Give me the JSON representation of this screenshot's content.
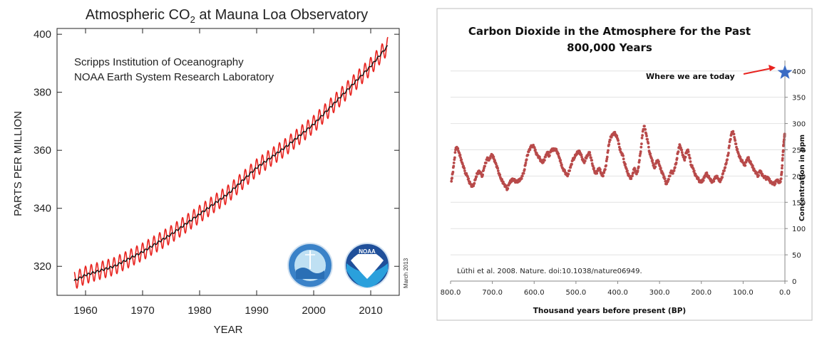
{
  "colors": {
    "seasonal": "#e8231f",
    "trend": "#111111",
    "scatter": "#b84a4a",
    "star": "#3a6bc4",
    "arrow": "#e8231f"
  },
  "chart_data": [
    {
      "type": "line",
      "title": "Atmospheric CO",
      "title_sub": "2",
      "title_rest": " at Mauna Loa Observatory",
      "xlabel": "YEAR",
      "ylabel": "PARTS PER MILLION",
      "xlim": [
        1955,
        2015
      ],
      "ylim": [
        310,
        402
      ],
      "x_ticks": [
        1960,
        1970,
        1980,
        1990,
        2000,
        2010
      ],
      "y_ticks": [
        320,
        340,
        360,
        380,
        400
      ],
      "grid": false,
      "annotations": [
        "Scripps Institution of Oceanography",
        "NOAA Earth System Research Laboratory"
      ],
      "date_note": "March 2013",
      "series": [
        {
          "role": "monthly mean (seasonal)",
          "x": [
            1958,
            1960,
            1965,
            1970,
            1975,
            1980,
            1985,
            1990,
            1995,
            2000,
            2005,
            2010,
            2013
          ],
          "y": [
            315,
            317,
            320,
            325,
            331,
            338,
            345,
            354,
            361,
            369,
            379,
            389,
            396
          ],
          "seasonal_amplitude": 3
        },
        {
          "role": "trend",
          "x": [
            1958,
            1960,
            1965,
            1970,
            1975,
            1980,
            1985,
            1990,
            1995,
            2000,
            2005,
            2010,
            2013
          ],
          "y": [
            315,
            317,
            320,
            325,
            331,
            338,
            345,
            354,
            361,
            369,
            379,
            389,
            396
          ]
        }
      ]
    },
    {
      "type": "scatter",
      "title_line1": "Carbon Dioxide  in the Atmosphere for the Past",
      "title_line2": "800,000 Years",
      "xlabel": "Thousand years before present (BP)",
      "ylabel": "Concentration in ppm",
      "xlim": [
        800,
        0
      ],
      "ylim": [
        0,
        420
      ],
      "x_ticks": [
        "800.0",
        "700.0",
        "600.0",
        "500.0",
        "400.0",
        "300.0",
        "200.0",
        "100.0",
        "0.0"
      ],
      "y_ticks": [
        0,
        50,
        100,
        150,
        200,
        250,
        300,
        350,
        400
      ],
      "grid": true,
      "annotation": "Where we are today",
      "citation": "Lüthi et al. 2008. Nature. doi:10.1038/nature06949.",
      "today": {
        "x": 0,
        "y": 397
      },
      "points": [
        [
          798,
          190
        ],
        [
          795,
          205
        ],
        [
          792,
          225
        ],
        [
          788,
          250
        ],
        [
          785,
          255
        ],
        [
          780,
          245
        ],
        [
          776,
          235
        ],
        [
          772,
          225
        ],
        [
          768,
          215
        ],
        [
          764,
          205
        ],
        [
          760,
          200
        ],
        [
          756,
          190
        ],
        [
          752,
          185
        ],
        [
          748,
          180
        ],
        [
          744,
          185
        ],
        [
          740,
          195
        ],
        [
          736,
          205
        ],
        [
          732,
          210
        ],
        [
          728,
          205
        ],
        [
          724,
          200
        ],
        [
          720,
          215
        ],
        [
          716,
          225
        ],
        [
          712,
          235
        ],
        [
          708,
          230
        ],
        [
          704,
          238
        ],
        [
          700,
          240
        ],
        [
          696,
          232
        ],
        [
          692,
          225
        ],
        [
          688,
          215
        ],
        [
          684,
          205
        ],
        [
          680,
          195
        ],
        [
          676,
          190
        ],
        [
          672,
          185
        ],
        [
          668,
          180
        ],
        [
          664,
          175
        ],
        [
          660,
          185
        ],
        [
          656,
          190
        ],
        [
          652,
          195
        ],
        [
          648,
          192
        ],
        [
          644,
          190
        ],
        [
          640,
          188
        ],
        [
          636,
          192
        ],
        [
          632,
          195
        ],
        [
          628,
          200
        ],
        [
          624,
          210
        ],
        [
          620,
          225
        ],
        [
          616,
          240
        ],
        [
          612,
          250
        ],
        [
          608,
          255
        ],
        [
          604,
          258
        ],
        [
          600,
          255
        ],
        [
          596,
          245
        ],
        [
          592,
          240
        ],
        [
          588,
          235
        ],
        [
          584,
          230
        ],
        [
          580,
          225
        ],
        [
          576,
          230
        ],
        [
          572,
          240
        ],
        [
          568,
          245
        ],
        [
          564,
          238
        ],
        [
          560,
          248
        ],
        [
          556,
          250
        ],
        [
          552,
          252
        ],
        [
          548,
          250
        ],
        [
          544,
          245
        ],
        [
          540,
          235
        ],
        [
          536,
          225
        ],
        [
          532,
          215
        ],
        [
          528,
          210
        ],
        [
          524,
          205
        ],
        [
          520,
          200
        ],
        [
          516,
          210
        ],
        [
          512,
          220
        ],
        [
          508,
          230
        ],
        [
          504,
          235
        ],
        [
          500,
          240
        ],
        [
          496,
          245
        ],
        [
          492,
          248
        ],
        [
          488,
          240
        ],
        [
          484,
          232
        ],
        [
          480,
          225
        ],
        [
          476,
          235
        ],
        [
          472,
          240
        ],
        [
          468,
          245
        ],
        [
          464,
          235
        ],
        [
          460,
          220
        ],
        [
          456,
          210
        ],
        [
          452,
          205
        ],
        [
          448,
          210
        ],
        [
          444,
          215
        ],
        [
          440,
          205
        ],
        [
          436,
          200
        ],
        [
          432,
          210
        ],
        [
          428,
          220
        ],
        [
          424,
          245
        ],
        [
          420,
          265
        ],
        [
          416,
          275
        ],
        [
          412,
          280
        ],
        [
          408,
          282
        ],
        [
          404,
          278
        ],
        [
          400,
          270
        ],
        [
          396,
          255
        ],
        [
          392,
          245
        ],
        [
          388,
          240
        ],
        [
          384,
          225
        ],
        [
          380,
          215
        ],
        [
          376,
          205
        ],
        [
          372,
          200
        ],
        [
          368,
          195
        ],
        [
          364,
          205
        ],
        [
          360,
          215
        ],
        [
          356,
          205
        ],
        [
          352,
          210
        ],
        [
          348,
          230
        ],
        [
          344,
          255
        ],
        [
          340,
          285
        ],
        [
          336,
          295
        ],
        [
          332,
          280
        ],
        [
          328,
          265
        ],
        [
          324,
          245
        ],
        [
          320,
          235
        ],
        [
          316,
          225
        ],
        [
          312,
          215
        ],
        [
          308,
          225
        ],
        [
          304,
          230
        ],
        [
          300,
          220
        ],
        [
          296,
          210
        ],
        [
          292,
          205
        ],
        [
          288,
          195
        ],
        [
          284,
          185
        ],
        [
          280,
          190
        ],
        [
          276,
          200
        ],
        [
          272,
          210
        ],
        [
          268,
          205
        ],
        [
          264,
          215
        ],
        [
          260,
          225
        ],
        [
          256,
          245
        ],
        [
          252,
          260
        ],
        [
          248,
          250
        ],
        [
          244,
          240
        ],
        [
          240,
          230
        ],
        [
          236,
          245
        ],
        [
          232,
          250
        ],
        [
          228,
          235
        ],
        [
          224,
          220
        ],
        [
          220,
          215
        ],
        [
          216,
          205
        ],
        [
          212,
          200
        ],
        [
          208,
          195
        ],
        [
          204,
          190
        ],
        [
          200,
          188
        ],
        [
          196,
          192
        ],
        [
          192,
          200
        ],
        [
          188,
          205
        ],
        [
          184,
          200
        ],
        [
          180,
          195
        ],
        [
          176,
          190
        ],
        [
          172,
          190
        ],
        [
          168,
          195
        ],
        [
          164,
          200
        ],
        [
          160,
          195
        ],
        [
          156,
          190
        ],
        [
          152,
          195
        ],
        [
          148,
          205
        ],
        [
          144,
          215
        ],
        [
          140,
          225
        ],
        [
          136,
          240
        ],
        [
          132,
          265
        ],
        [
          128,
          280
        ],
        [
          124,
          285
        ],
        [
          120,
          270
        ],
        [
          116,
          255
        ],
        [
          112,
          245
        ],
        [
          108,
          235
        ],
        [
          104,
          230
        ],
        [
          100,
          225
        ],
        [
          96,
          220
        ],
        [
          92,
          230
        ],
        [
          88,
          235
        ],
        [
          84,
          228
        ],
        [
          80,
          222
        ],
        [
          76,
          215
        ],
        [
          72,
          210
        ],
        [
          68,
          205
        ],
        [
          64,
          200
        ],
        [
          60,
          210
        ],
        [
          56,
          205
        ],
        [
          52,
          200
        ],
        [
          48,
          198
        ],
        [
          44,
          195
        ],
        [
          40,
          197
        ],
        [
          36,
          190
        ],
        [
          32,
          188
        ],
        [
          28,
          186
        ],
        [
          24,
          185
        ],
        [
          20,
          192
        ],
        [
          16,
          190
        ],
        [
          12,
          188
        ],
        [
          9,
          195
        ],
        [
          7,
          215
        ],
        [
          5,
          240
        ],
        [
          3,
          260
        ],
        [
          2,
          268
        ],
        [
          1,
          275
        ],
        [
          0.5,
          280
        ]
      ]
    }
  ]
}
